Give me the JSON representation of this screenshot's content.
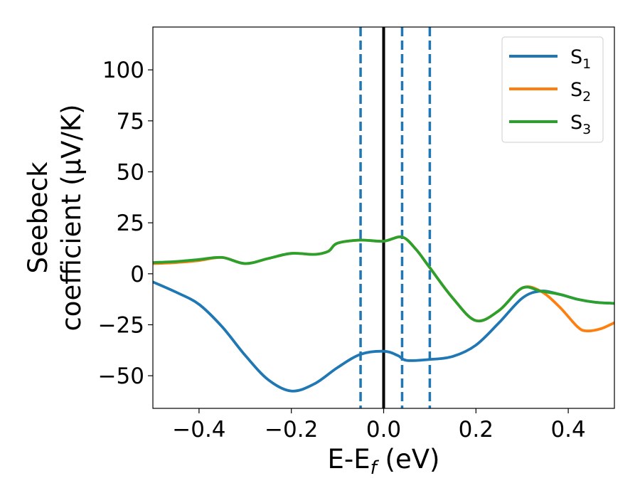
{
  "chart_data": {
    "type": "line",
    "xlabel_base": "E-E",
    "xlabel_sub": "f",
    "xlabel_unit": " (eV)",
    "ylabel_line1": "Seebeck",
    "ylabel_line2": "coefficient  (μV/K)",
    "xlim": [
      -0.5,
      0.5
    ],
    "ylim": [
      -66,
      121
    ],
    "x_ticks": [
      -0.4,
      -0.2,
      0.0,
      0.2,
      0.4
    ],
    "x_tick_labels": [
      "−0.4",
      "−0.2",
      "0.0",
      "0.2",
      "0.4"
    ],
    "y_ticks": [
      -50,
      -25,
      0,
      25,
      50,
      75,
      100
    ],
    "y_tick_labels": [
      "−50",
      "−25",
      "0",
      "25",
      "50",
      "75",
      "100"
    ],
    "grid": false,
    "legend_position": "top-right",
    "vertical_lines": [
      {
        "x": 0.0,
        "style": "solid",
        "color": "#000000"
      },
      {
        "x": -0.05,
        "style": "dashed",
        "color": "#1f77b4"
      },
      {
        "x": 0.04,
        "style": "dashed",
        "color": "#1f77b4"
      },
      {
        "x": 0.1,
        "style": "dashed",
        "color": "#1f77b4"
      }
    ],
    "series": [
      {
        "name": "S",
        "sub": "1",
        "color": "#1f77b4",
        "points": [
          [
            -0.5,
            -4
          ],
          [
            -0.45,
            -9
          ],
          [
            -0.4,
            -15
          ],
          [
            -0.35,
            -26
          ],
          [
            -0.3,
            -40
          ],
          [
            -0.25,
            -52
          ],
          [
            -0.2,
            -57.5
          ],
          [
            -0.15,
            -54
          ],
          [
            -0.1,
            -46
          ],
          [
            -0.05,
            -39.5
          ],
          [
            0.0,
            -38
          ],
          [
            0.03,
            -40
          ],
          [
            0.05,
            -42.5
          ],
          [
            0.1,
            -42
          ],
          [
            0.15,
            -40.5
          ],
          [
            0.2,
            -35
          ],
          [
            0.25,
            -24
          ],
          [
            0.3,
            -12
          ],
          [
            0.34,
            -8.5
          ],
          [
            0.38,
            -10
          ],
          [
            0.42,
            -12.5
          ],
          [
            0.46,
            -14
          ],
          [
            0.5,
            -14.5
          ]
        ]
      },
      {
        "name": "S",
        "sub": "2",
        "color": "#ff7f0e",
        "points": [
          [
            -0.5,
            5
          ],
          [
            -0.45,
            5.5
          ],
          [
            -0.4,
            6.5
          ],
          [
            -0.35,
            8
          ],
          [
            -0.3,
            5
          ],
          [
            -0.25,
            7.5
          ],
          [
            -0.2,
            10
          ],
          [
            -0.15,
            9.5
          ],
          [
            -0.12,
            11
          ],
          [
            -0.1,
            15
          ],
          [
            -0.05,
            16.5
          ],
          [
            0.0,
            16
          ],
          [
            0.04,
            18
          ],
          [
            0.07,
            12
          ],
          [
            0.1,
            3
          ],
          [
            0.15,
            -12
          ],
          [
            0.2,
            -23
          ],
          [
            0.25,
            -18
          ],
          [
            0.3,
            -7
          ],
          [
            0.34,
            -8.5
          ],
          [
            0.38,
            -16
          ],
          [
            0.42,
            -26
          ],
          [
            0.44,
            -28
          ],
          [
            0.47,
            -27
          ],
          [
            0.5,
            -24
          ]
        ]
      },
      {
        "name": "S",
        "sub": "3",
        "color": "#2ca02c",
        "points": [
          [
            -0.5,
            5.5
          ],
          [
            -0.45,
            6
          ],
          [
            -0.4,
            7
          ],
          [
            -0.35,
            8
          ],
          [
            -0.3,
            5
          ],
          [
            -0.25,
            7.5
          ],
          [
            -0.2,
            10
          ],
          [
            -0.15,
            9.5
          ],
          [
            -0.12,
            11
          ],
          [
            -0.1,
            15
          ],
          [
            -0.05,
            16.5
          ],
          [
            0.0,
            16
          ],
          [
            0.04,
            18
          ],
          [
            0.07,
            12
          ],
          [
            0.1,
            3
          ],
          [
            0.15,
            -12
          ],
          [
            0.2,
            -23
          ],
          [
            0.25,
            -18
          ],
          [
            0.3,
            -7
          ],
          [
            0.34,
            -8.5
          ],
          [
            0.38,
            -10
          ],
          [
            0.42,
            -12.5
          ],
          [
            0.46,
            -14
          ],
          [
            0.5,
            -14.5
          ]
        ]
      }
    ]
  }
}
